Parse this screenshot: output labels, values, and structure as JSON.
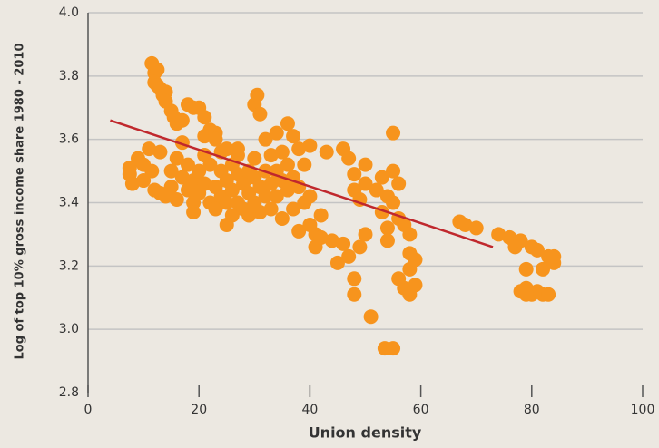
{
  "chart_data": {
    "type": "scatter",
    "xlabel": "Union density",
    "ylabel": "Log of top 10% gross income share 1980 - 2010",
    "color": "#f7941d",
    "trend": {
      "color": "#c0282d",
      "x": [
        4,
        73
      ],
      "y": [
        3.66,
        3.26
      ]
    },
    "x": [
      7.5,
      7.5,
      8,
      9,
      10,
      10,
      11,
      11.5,
      12,
      13,
      13,
      11.5,
      12,
      12.5,
      12,
      12.5,
      13,
      13.5,
      14,
      14,
      15,
      15.5,
      16,
      17,
      18,
      19,
      20,
      21,
      22,
      21,
      23,
      14,
      15,
      15,
      16,
      16,
      17,
      17,
      18,
      18,
      19,
      19,
      19,
      20,
      20,
      21,
      21,
      22,
      22,
      23,
      23,
      24,
      24,
      24,
      25,
      25,
      25,
      26,
      26,
      26,
      27,
      27,
      27,
      28,
      28,
      29,
      29,
      29,
      30,
      30,
      30,
      31,
      31,
      32,
      32,
      32,
      33,
      33,
      33,
      34,
      34,
      34,
      35,
      35,
      35,
      36,
      36,
      36,
      37,
      37,
      37,
      38,
      38,
      38,
      39,
      39,
      40,
      40,
      40,
      41,
      41,
      42,
      42,
      43,
      44,
      45,
      46,
      46,
      47,
      47,
      48,
      48,
      48,
      48,
      49,
      49,
      50,
      50,
      50,
      51,
      52,
      53,
      53,
      54,
      54,
      54,
      55,
      55,
      55,
      56,
      56,
      56,
      57,
      57,
      58,
      58,
      58,
      58,
      59,
      59,
      53.5,
      55,
      30,
      30.5,
      31,
      30,
      27,
      23,
      25,
      21,
      67,
      68,
      70,
      74,
      76,
      77,
      78,
      79,
      80,
      81,
      82,
      83,
      84,
      78,
      79,
      80,
      81,
      82,
      83,
      79,
      84
    ],
    "y": [
      3.51,
      3.49,
      3.46,
      3.54,
      3.47,
      3.52,
      3.57,
      3.5,
      3.44,
      3.56,
      3.43,
      3.84,
      3.81,
      3.82,
      3.78,
      3.77,
      3.76,
      3.74,
      3.75,
      3.72,
      3.69,
      3.67,
      3.65,
      3.66,
      3.71,
      3.7,
      3.7,
      3.67,
      3.63,
      3.61,
      3.62,
      3.42,
      3.5,
      3.45,
      3.41,
      3.54,
      3.59,
      3.48,
      3.44,
      3.52,
      3.4,
      3.47,
      3.37,
      3.5,
      3.43,
      3.46,
      3.55,
      3.4,
      3.52,
      3.45,
      3.38,
      3.5,
      3.42,
      3.56,
      3.33,
      3.47,
      3.4,
      3.52,
      3.44,
      3.36,
      3.49,
      3.4,
      3.55,
      3.46,
      3.38,
      3.5,
      3.43,
      3.36,
      3.48,
      3.4,
      3.54,
      3.45,
      3.37,
      3.5,
      3.42,
      3.6,
      3.46,
      3.38,
      3.55,
      3.62,
      3.5,
      3.42,
      3.35,
      3.47,
      3.56,
      3.65,
      3.52,
      3.44,
      3.61,
      3.48,
      3.38,
      3.57,
      3.45,
      3.31,
      3.52,
      3.4,
      3.58,
      3.42,
      3.33,
      3.3,
      3.26,
      3.36,
      3.29,
      3.56,
      3.28,
      3.21,
      3.57,
      3.27,
      3.54,
      3.23,
      3.49,
      3.44,
      3.16,
      3.11,
      3.26,
      3.41,
      3.52,
      3.46,
      3.3,
      3.04,
      3.44,
      3.48,
      3.37,
      3.42,
      3.32,
      3.28,
      3.5,
      3.62,
      3.4,
      3.46,
      3.35,
      3.16,
      3.13,
      3.33,
      3.3,
      3.24,
      3.19,
      3.11,
      3.14,
      3.22,
      2.94,
      2.94,
      3.71,
      3.74,
      3.68,
      3.39,
      3.57,
      3.6,
      3.57,
      3.55,
      3.34,
      3.33,
      3.32,
      3.3,
      3.29,
      3.26,
      3.28,
      3.19,
      3.26,
      3.25,
      3.19,
      3.23,
      3.21,
      3.12,
      3.13,
      3.11,
      3.12,
      3.11,
      3.11,
      3.11,
      3.23
    ],
    "xlim": [
      0,
      100
    ],
    "xticks": [
      0,
      20,
      40,
      60,
      80,
      100
    ],
    "ylim": [
      2.8,
      4.0
    ],
    "yticks": [
      2.8,
      {
        "value": 3.0,
        "label": "3.0"
      },
      3.2,
      3.4,
      3.6,
      3.8,
      {
        "value": 4.0,
        "label": "4.0"
      }
    ],
    "grid": true
  }
}
